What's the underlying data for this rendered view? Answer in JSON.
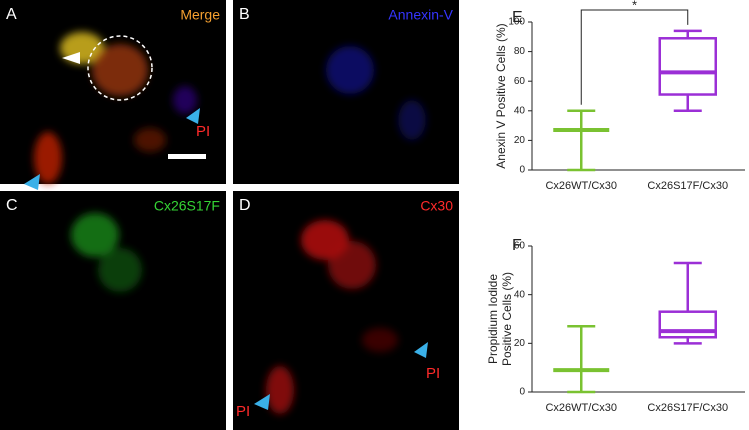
{
  "micrographs": [
    {
      "letter": "A",
      "label": "Merge",
      "color": "#f5a030"
    },
    {
      "letter": "B",
      "label": "Annexin-V",
      "color": "#3535ff"
    },
    {
      "letter": "C",
      "label": "Cx26S17F",
      "color": "#35d535"
    },
    {
      "letter": "D",
      "label": "Cx30",
      "color": "#ff2a2a"
    }
  ],
  "pi_marker": "PI",
  "chart_data": [
    {
      "type": "box",
      "panel": "E",
      "y_label": "Anexin V Positive Cells (%)",
      "categories": [
        "Cx26WT/Cx30",
        "Cx26S17F/Cx30"
      ],
      "colors": [
        "#7ac231",
        "#9b2fd6"
      ],
      "values": [
        {
          "min": 0,
          "q1": 27,
          "median": 27,
          "q3": 27,
          "max": 40
        },
        {
          "min": 40,
          "q1": 51,
          "median": 66,
          "q3": 89,
          "max": 94
        }
      ],
      "ylim": [
        0,
        100
      ],
      "yticks": [
        0,
        20,
        40,
        60,
        80,
        100
      ],
      "annotation": "*"
    },
    {
      "type": "box",
      "panel": "F",
      "y_label": [
        "Propidium Iodide",
        "Positive Cells (%)"
      ],
      "categories": [
        "Cx26WT/Cx30",
        "Cx26S17F/Cx30"
      ],
      "colors": [
        "#7ac231",
        "#9b2fd6"
      ],
      "values": [
        {
          "min": 0,
          "q1": 9,
          "median": 9,
          "q3": 9,
          "max": 27
        },
        {
          "min": 20,
          "q1": 22.5,
          "median": 25,
          "q3": 33,
          "max": 53
        }
      ],
      "ylim": [
        0,
        60
      ],
      "yticks": [
        0,
        20,
        40,
        60
      ]
    }
  ]
}
